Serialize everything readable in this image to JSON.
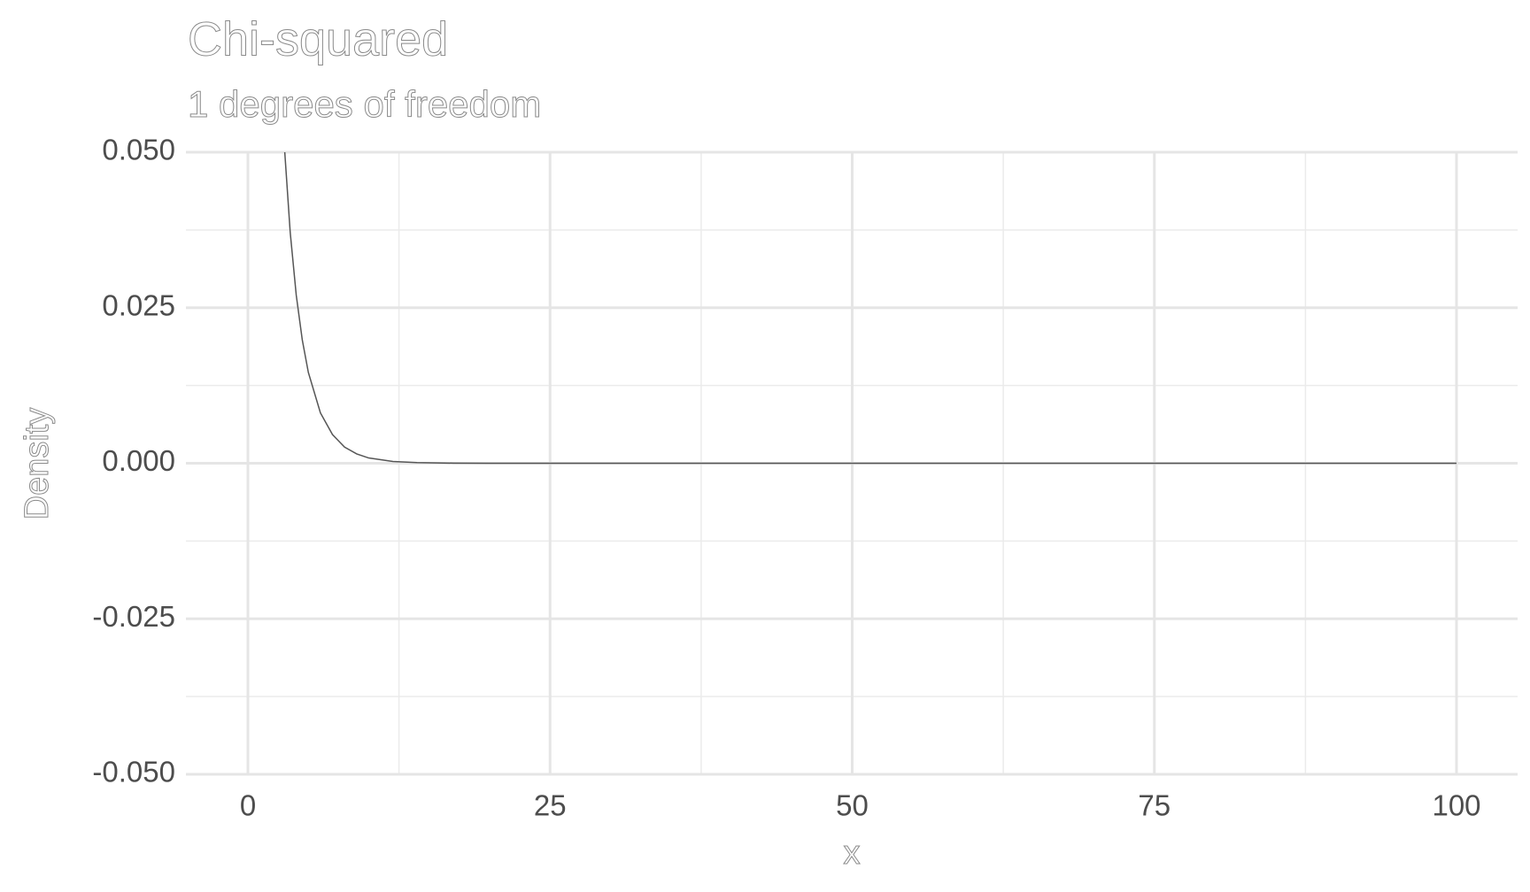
{
  "chart_data": {
    "type": "line",
    "title": "Chi-squared",
    "subtitle": "1 degrees of freedom",
    "x_label": "x",
    "y_label": "Density",
    "x": [
      3,
      3.5,
      4,
      4.5,
      5,
      6,
      7,
      8,
      9,
      10,
      12,
      14,
      17,
      20,
      30,
      50,
      75,
      100
    ],
    "series": [
      {
        "color": "#555555",
        "values": [
          0.0514,
          0.0371,
          0.027,
          0.0198,
          0.0146,
          0.0081,
          0.0046,
          0.0026,
          0.0015,
          0.00085,
          0.00029,
          0.0001,
          2e-05,
          0,
          0,
          0,
          0,
          0
        ]
      }
    ],
    "xlim": [
      0,
      100
    ],
    "xticks": [
      0,
      25,
      50,
      75,
      100
    ],
    "ylim": [
      -0.05,
      0.05
    ],
    "yticks": [
      {
        "value": -0.05,
        "label": "-0.050"
      },
      {
        "value": -0.025,
        "label": "-0.025"
      },
      {
        "value": 0,
        "label": "0.000"
      },
      {
        "value": 0.025,
        "label": "0.025"
      },
      {
        "value": 0.05,
        "label": "0.050"
      }
    ],
    "grid": true
  }
}
